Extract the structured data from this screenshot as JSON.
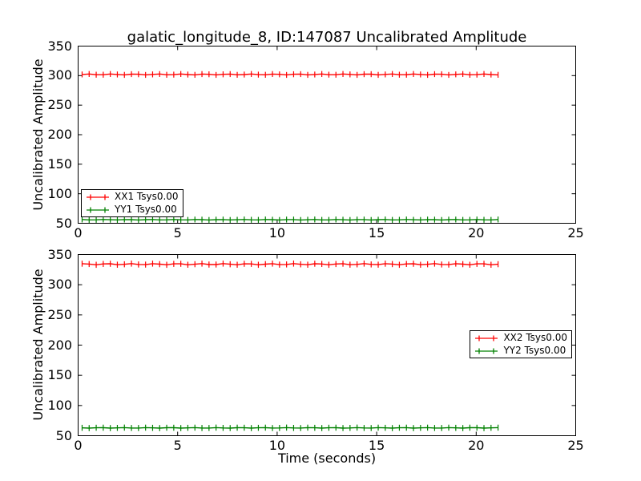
{
  "figure": {
    "background": "#ffffff",
    "frame_color": "#000000"
  },
  "chart_data": [
    {
      "type": "line",
      "subtype": "errorbar",
      "title": "galatic_longitude_8, ID:147087 Uncalibrated Amplitude",
      "xlabel": "",
      "ylabel": "Uncalibrated Amplitude",
      "xlim": [
        0,
        25
      ],
      "ylim": [
        50,
        350
      ],
      "xticks": [
        "0",
        "5",
        "10",
        "15",
        "20",
        "25"
      ],
      "yticks": [
        "50",
        "100",
        "150",
        "200",
        "250",
        "300",
        "350"
      ],
      "grid": false,
      "legend": {
        "position": "lower-left",
        "entries": [
          "XX1 Tsys0.00",
          "YY1 Tsys0.00"
        ]
      },
      "series": [
        {
          "name": "XX1 Tsys0.00",
          "color": "#ff0000",
          "marker": "errorbar-tick",
          "x_start": 0.2,
          "x_end": 21.1,
          "n_points": 60,
          "y_value": 302,
          "y_err": 5,
          "y_jitter": 0.8
        },
        {
          "name": "YY1 Tsys0.00",
          "color": "#008000",
          "marker": "errorbar-tick",
          "x_start": 0.2,
          "x_end": 21.1,
          "n_points": 60,
          "y_value": 56,
          "y_err": 5,
          "y_jitter": 0.4
        }
      ]
    },
    {
      "type": "line",
      "subtype": "errorbar",
      "title": "",
      "xlabel": "Time (seconds)",
      "ylabel": "Uncalibrated Amplitude",
      "xlim": [
        0,
        25
      ],
      "ylim": [
        50,
        350
      ],
      "xticks": [
        "0",
        "5",
        "10",
        "15",
        "20",
        "25"
      ],
      "yticks": [
        "50",
        "100",
        "150",
        "200",
        "250",
        "300",
        "350"
      ],
      "grid": false,
      "legend": {
        "position": "center-right",
        "entries": [
          "XX2 Tsys0.00",
          "YY2 Tsys0.00"
        ]
      },
      "series": [
        {
          "name": "XX2 Tsys0.00",
          "color": "#ff0000",
          "marker": "errorbar-tick",
          "x_start": 0.2,
          "x_end": 21.1,
          "n_points": 60,
          "y_value": 334,
          "y_err": 5,
          "y_jitter": 1.0
        },
        {
          "name": "YY2 Tsys0.00",
          "color": "#008000",
          "marker": "errorbar-tick",
          "x_start": 0.2,
          "x_end": 21.1,
          "n_points": 60,
          "y_value": 63,
          "y_err": 5,
          "y_jitter": 0.4
        }
      ]
    }
  ]
}
